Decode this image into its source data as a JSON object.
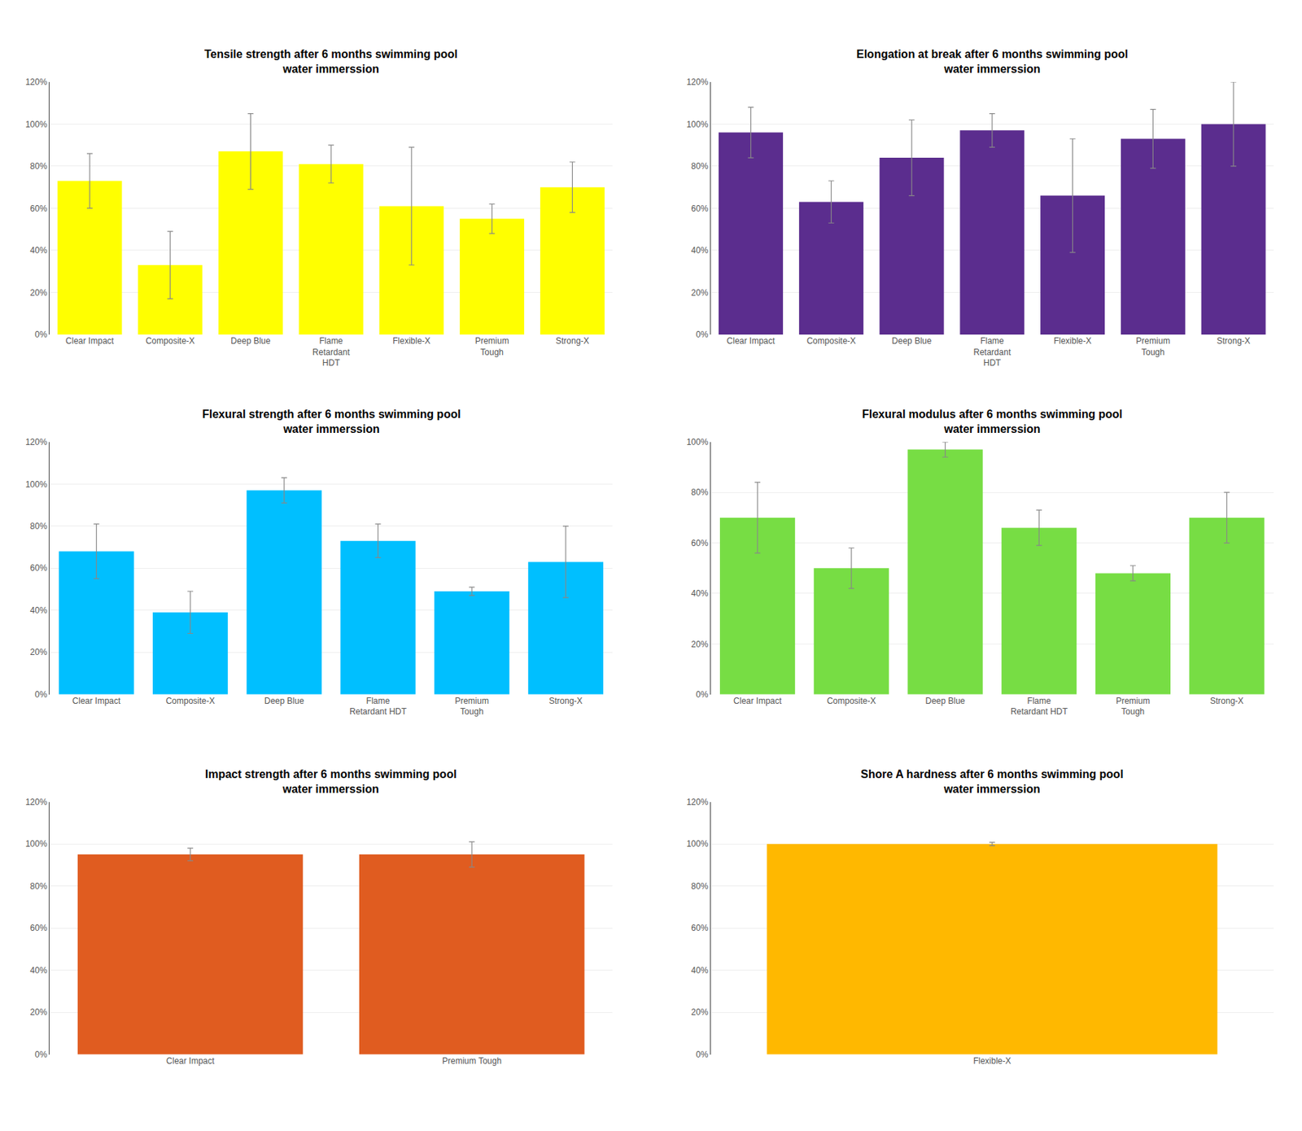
{
  "chart_data": [
    {
      "type": "bar",
      "title": "Tensile strength after 6 months swimming pool\nwater immerssion",
      "categories": [
        "Clear Impact",
        "Composite-X",
        "Deep Blue",
        "Flame\nRetardant\nHDT",
        "Flexible-X",
        "Premium\nTough",
        "Strong-X"
      ],
      "values": [
        0.73,
        0.33,
        0.87,
        0.81,
        0.61,
        0.55,
        0.7
      ],
      "errors": [
        0.13,
        0.16,
        0.18,
        0.09,
        0.28,
        0.07,
        0.12
      ],
      "color": "#FFFF00",
      "ylim": [
        0,
        1.2
      ],
      "yticks": [
        {
          "value": 0,
          "label": "0%"
        },
        {
          "value": 0.2,
          "label": "20%"
        },
        {
          "value": 0.4,
          "label": "40%"
        },
        {
          "value": 0.6,
          "label": "60%"
        },
        {
          "value": 0.8,
          "label": "80%"
        },
        {
          "value": 1.0,
          "label": "100%"
        },
        {
          "value": 1.2,
          "label": "120%"
        }
      ],
      "grid": true
    },
    {
      "type": "bar",
      "title": "Elongation at break after 6 months swimming pool\nwater immerssion",
      "categories": [
        "Clear Impact",
        "Composite-X",
        "Deep Blue",
        "Flame\nRetardant\nHDT",
        "Flexible-X",
        "Premium\nTough",
        "Strong-X"
      ],
      "values": [
        0.96,
        0.63,
        0.84,
        0.97,
        0.66,
        0.93,
        1.0
      ],
      "errors": [
        0.12,
        0.1,
        0.18,
        0.08,
        0.27,
        0.14,
        0.2
      ],
      "color": "#5B2D8E",
      "ylim": [
        0,
        1.2
      ],
      "yticks": [
        {
          "value": 0,
          "label": "0%"
        },
        {
          "value": 0.2,
          "label": "20%"
        },
        {
          "value": 0.4,
          "label": "40%"
        },
        {
          "value": 0.6,
          "label": "60%"
        },
        {
          "value": 0.8,
          "label": "80%"
        },
        {
          "value": 1.0,
          "label": "100%"
        },
        {
          "value": 1.2,
          "label": "120%"
        }
      ],
      "grid": true
    },
    {
      "type": "bar",
      "title": "Flexural strength after 6 months swimming pool\nwater immerssion",
      "categories": [
        "Clear Impact",
        "Composite-X",
        "Deep Blue",
        "Flame\nRetardant HDT",
        "Premium\nTough",
        "Strong-X"
      ],
      "values": [
        0.68,
        0.39,
        0.97,
        0.73,
        0.49,
        0.63
      ],
      "errors": [
        0.13,
        0.1,
        0.06,
        0.08,
        0.02,
        0.17
      ],
      "color": "#00BFFF",
      "ylim": [
        0,
        1.2
      ],
      "yticks": [
        {
          "value": 0,
          "label": "0%"
        },
        {
          "value": 0.2,
          "label": "20%"
        },
        {
          "value": 0.4,
          "label": "40%"
        },
        {
          "value": 0.6,
          "label": "60%"
        },
        {
          "value": 0.8,
          "label": "80%"
        },
        {
          "value": 1.0,
          "label": "100%"
        },
        {
          "value": 1.2,
          "label": "120%"
        }
      ],
      "grid": true
    },
    {
      "type": "bar",
      "title": "Flexural modulus after 6 months swimming pool\nwater immerssion",
      "categories": [
        "Clear Impact",
        "Composite-X",
        "Deep Blue",
        "Flame\nRetardant HDT",
        "Premium\nTough",
        "Strong-X"
      ],
      "values": [
        0.7,
        0.5,
        0.97,
        0.66,
        0.48,
        0.7
      ],
      "errors": [
        0.14,
        0.08,
        0.03,
        0.07,
        0.03,
        0.1
      ],
      "color": "#77DD44",
      "ylim": [
        0,
        1.0
      ],
      "yticks": [
        {
          "value": 0,
          "label": "0%"
        },
        {
          "value": 0.2,
          "label": "20%"
        },
        {
          "value": 0.4,
          "label": "40%"
        },
        {
          "value": 0.6,
          "label": "60%"
        },
        {
          "value": 0.8,
          "label": "80%"
        },
        {
          "value": 1.0,
          "label": "100%"
        }
      ],
      "grid": true
    },
    {
      "type": "bar",
      "title": "Impact strength after 6 months swimming pool\nwater immerssion",
      "categories": [
        "Clear Impact",
        "Premium Tough"
      ],
      "values": [
        0.95,
        0.95
      ],
      "errors": [
        0.03,
        0.06
      ],
      "color": "#E05C20",
      "ylim": [
        0,
        1.2
      ],
      "yticks": [
        {
          "value": 0,
          "label": "0%"
        },
        {
          "value": 0.2,
          "label": "20%"
        },
        {
          "value": 0.4,
          "label": "40%"
        },
        {
          "value": 0.6,
          "label": "60%"
        },
        {
          "value": 0.8,
          "label": "80%"
        },
        {
          "value": 1.0,
          "label": "100%"
        },
        {
          "value": 1.2,
          "label": "120%"
        }
      ],
      "grid": true
    },
    {
      "type": "bar",
      "title": "Shore A hardness after 6 months swimming pool\nwater immerssion",
      "categories": [
        "Flexible-X"
      ],
      "values": [
        1.0
      ],
      "errors": [
        0.008
      ],
      "color": "#FFB800",
      "ylim": [
        0,
        1.2
      ],
      "yticks": [
        {
          "value": 0,
          "label": "0%"
        },
        {
          "value": 0.2,
          "label": "20%"
        },
        {
          "value": 0.4,
          "label": "40%"
        },
        {
          "value": 0.6,
          "label": "60%"
        },
        {
          "value": 0.8,
          "label": "80%"
        },
        {
          "value": 1.0,
          "label": "100%"
        },
        {
          "value": 1.2,
          "label": "120%"
        }
      ],
      "grid": true
    }
  ]
}
